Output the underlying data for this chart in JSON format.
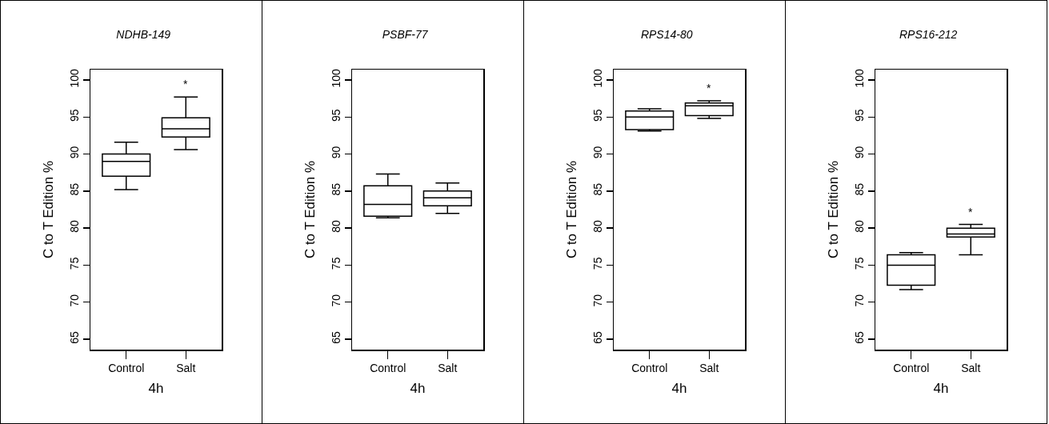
{
  "chart_data": [
    {
      "type": "box",
      "title": "NDHB-149",
      "xlabel": "4h",
      "ylabel": "C to T Edition %",
      "categories": [
        "Control",
        "Salt"
      ],
      "boxes": [
        {
          "low": 85.2,
          "q1": 87.0,
          "median": 89.0,
          "q3": 90.0,
          "high": 91.6
        },
        {
          "low": 90.6,
          "q1": 92.3,
          "median": 93.4,
          "q3": 94.9,
          "high": 97.7
        }
      ],
      "ylim": [
        63.6,
        101.4
      ],
      "yticks": [
        65,
        70,
        75,
        80,
        85,
        90,
        95,
        100
      ],
      "grid": false,
      "color": "#000000",
      "annotations": [
        "*"
      ]
    },
    {
      "type": "box",
      "title": "PSBF-77",
      "xlabel": "4h",
      "ylabel": "C to T Edition %",
      "categories": [
        "Control",
        "Salt"
      ],
      "boxes": [
        {
          "low": 81.4,
          "q1": 81.6,
          "median": 83.2,
          "q3": 85.7,
          "high": 87.3
        },
        {
          "low": 82.0,
          "q1": 83.0,
          "median": 84.1,
          "q3": 85.0,
          "high": 86.1
        }
      ],
      "ylim": [
        63.6,
        101.4
      ],
      "yticks": [
        65,
        70,
        75,
        80,
        85,
        90,
        95,
        100
      ],
      "grid": false,
      "color": "#000000"
    },
    {
      "type": "box",
      "title": "RPS14-80",
      "xlabel": "4h",
      "ylabel": "C to T Edition %",
      "categories": [
        "Control",
        "Salt"
      ],
      "boxes": [
        {
          "low": 93.1,
          "q1": 93.3,
          "median": 95.0,
          "q3": 95.8,
          "high": 96.1
        },
        {
          "low": 94.8,
          "q1": 95.2,
          "median": 96.5,
          "q3": 96.9,
          "high": 97.2
        }
      ],
      "ylim": [
        63.6,
        101.4
      ],
      "yticks": [
        65,
        70,
        75,
        80,
        85,
        90,
        95,
        100
      ],
      "grid": false,
      "color": "#000000",
      "annotations": [
        "*"
      ]
    },
    {
      "type": "box",
      "title": "RPS16-212",
      "xlabel": "4h",
      "ylabel": "C to T Edition %",
      "categories": [
        "Control",
        "Salt"
      ],
      "boxes": [
        {
          "low": 71.7,
          "q1": 72.3,
          "median": 75.0,
          "q3": 76.4,
          "high": 76.7
        },
        {
          "low": 76.4,
          "q1": 78.8,
          "median": 79.2,
          "q3": 80.0,
          "high": 80.5
        }
      ],
      "ylim": [
        63.6,
        101.4
      ],
      "yticks": [
        65,
        70,
        75,
        80,
        85,
        90,
        95,
        100
      ],
      "grid": false,
      "color": "#000000",
      "annotations": [
        "*"
      ]
    }
  ]
}
